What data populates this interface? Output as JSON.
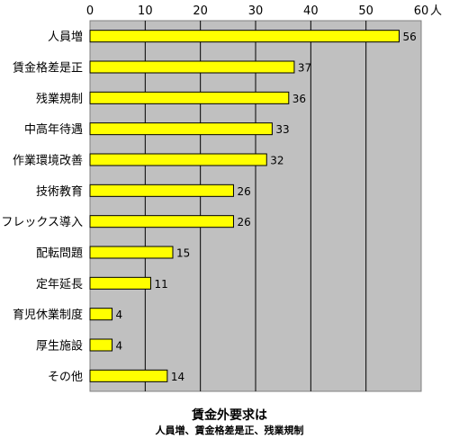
{
  "chart_data": {
    "type": "bar",
    "orientation": "horizontal",
    "title": "賃金外要求は",
    "subtitle": "人員増、賃金格差是正、残業規制",
    "unit": "人",
    "categories": [
      "人員増",
      "賃金格差是正",
      "残業規制",
      "中高年待遇",
      "作業環境改善",
      "技術教育",
      "フレックス導入",
      "配転問題",
      "定年延長",
      "育児休業制度",
      "厚生施設",
      "その他"
    ],
    "values": [
      56,
      37,
      36,
      33,
      32,
      26,
      26,
      15,
      11,
      4,
      4,
      14
    ],
    "xlim": [
      0,
      60
    ],
    "xticks": [
      0,
      10,
      20,
      30,
      40,
      50,
      60
    ],
    "x_axis_position": "top",
    "grid": true,
    "colors": {
      "bar_fill": "#ffff00",
      "bar_stroke": "#000000",
      "plot_bg": "#c0c0c0"
    }
  }
}
